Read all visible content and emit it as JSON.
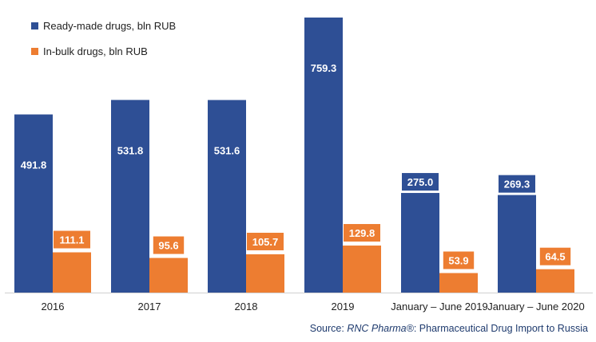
{
  "chart_data": {
    "type": "bar",
    "categories": [
      "2016",
      "2017",
      "2018",
      "2019",
      "January – June 2019",
      "January – June 2020"
    ],
    "series": [
      {
        "name": "Ready-made drugs, bln RUB",
        "values": [
          491.8,
          531.8,
          531.6,
          759.3,
          275.0,
          269.3
        ],
        "labels": [
          "491.8",
          "531.8",
          "531.6",
          "759.3",
          "275.0",
          "269.3"
        ],
        "color": "#2e4f95"
      },
      {
        "name": "In-bulk drugs, bln RUB",
        "values": [
          111.1,
          95.6,
          105.7,
          129.8,
          53.9,
          64.5
        ],
        "labels": [
          "111.1",
          "95.6",
          "105.7",
          "129.8",
          "53.9",
          "64.5"
        ],
        "color": "#ed7d31"
      }
    ],
    "legend": "top-left",
    "grid": false
  },
  "source": {
    "prefix": "Source: ",
    "brand": "RNC Pharma®",
    "suffix": ": Pharmaceutical Drug Import to Russia"
  }
}
